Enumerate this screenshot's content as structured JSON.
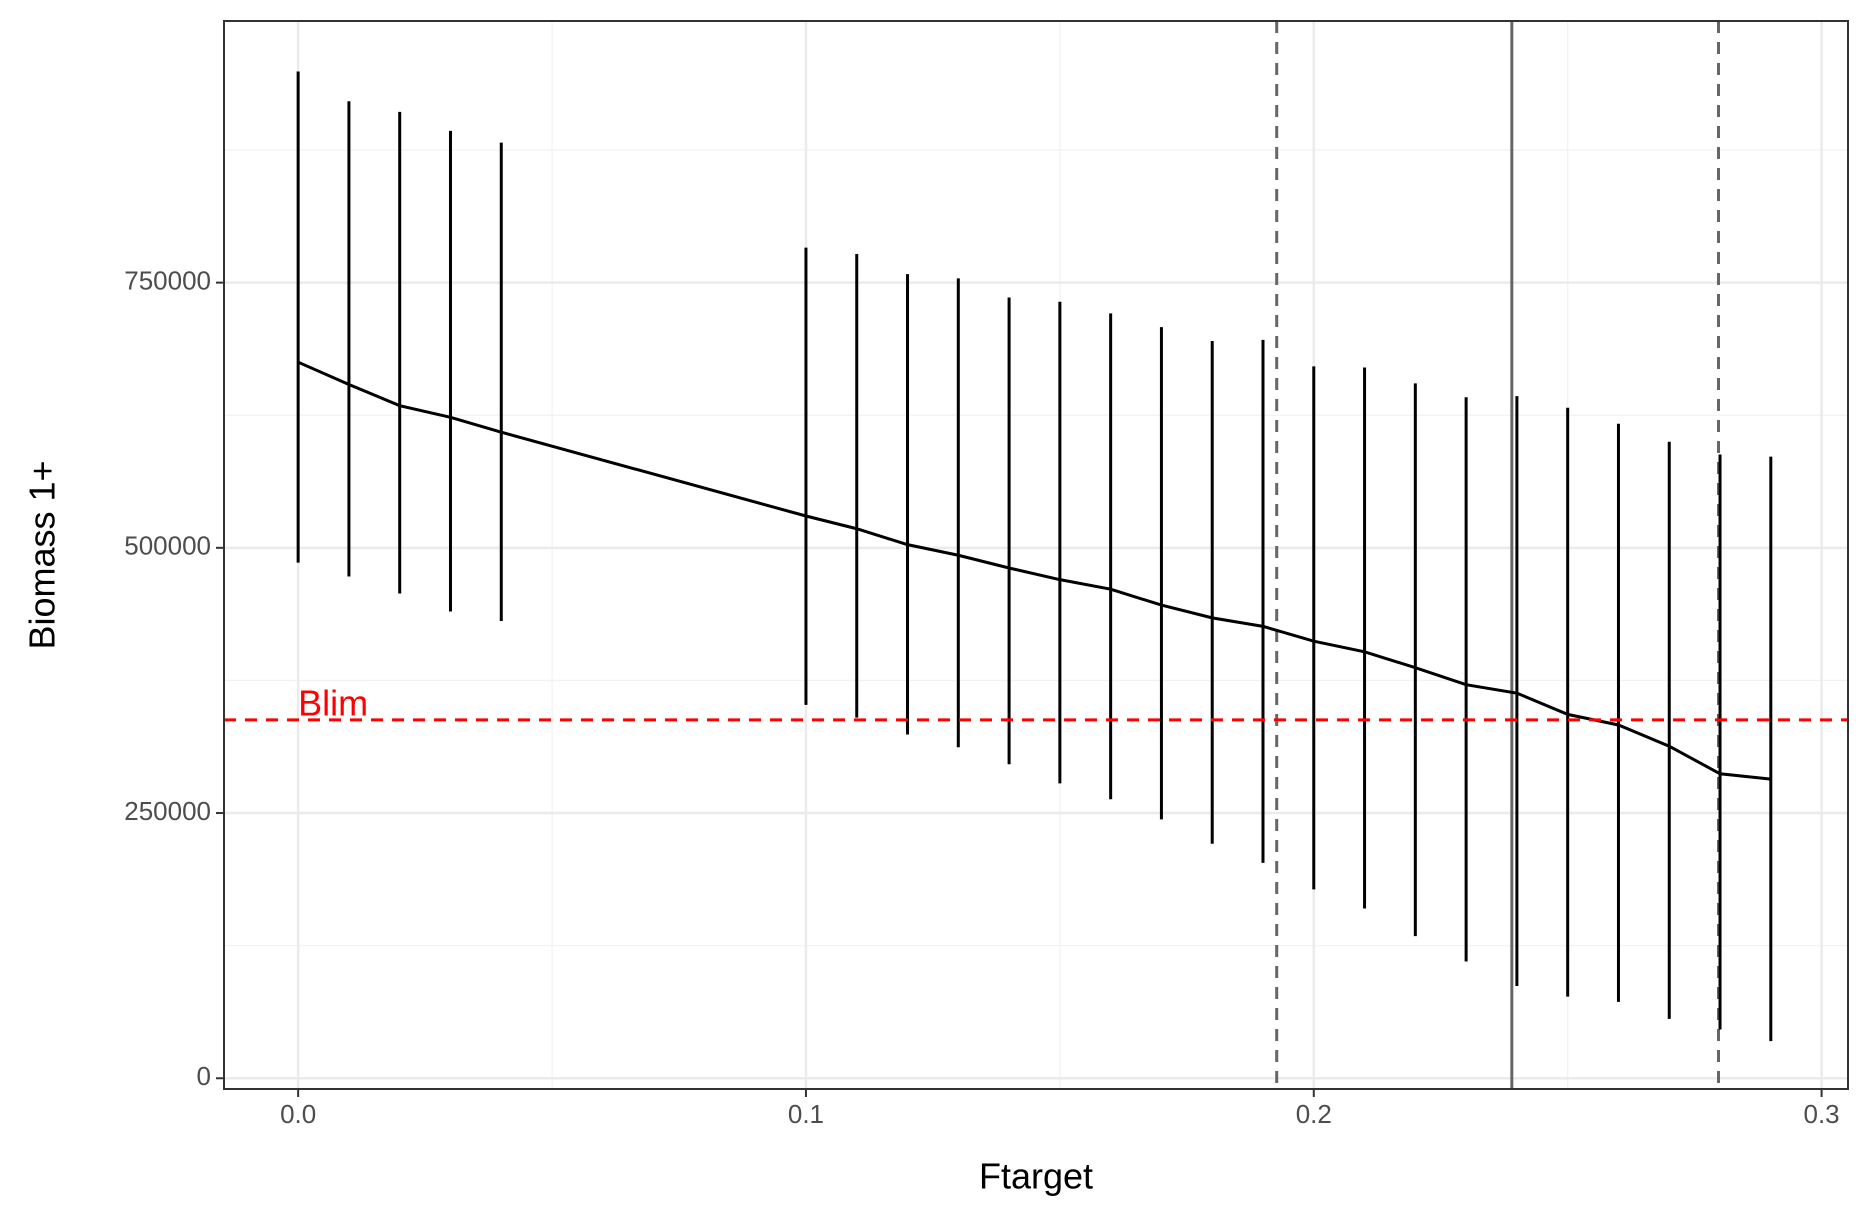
{
  "chart_data": {
    "type": "errorbar-line",
    "x_label": "Ftarget",
    "y_label": "Biomass 1+",
    "x": [
      0,
      0.01,
      0.02,
      0.03,
      0.04,
      0.1,
      0.11,
      0.12,
      0.13,
      0.14,
      0.15,
      0.16,
      0.17,
      0.18,
      0.19,
      0.2,
      0.21,
      0.22,
      0.23,
      0.24,
      0.25,
      0.26,
      0.27,
      0.28,
      0.29
    ],
    "values": [
      675000,
      654000,
      634000,
      623000,
      609000,
      530000,
      518000,
      503000,
      493000,
      481000,
      470000,
      461000,
      446000,
      434000,
      426000,
      412000,
      402000,
      387000,
      371000,
      363000,
      343000,
      333000,
      313000,
      287000,
      282000
    ],
    "upper": [
      949000,
      921000,
      911000,
      893000,
      882000,
      783000,
      777000,
      758000,
      754000,
      736000,
      732000,
      721000,
      708000,
      695000,
      696000,
      671000,
      670000,
      655000,
      642000,
      643000,
      632000,
      617000,
      600000,
      588000,
      586000
    ],
    "lower": [
      486000,
      473000,
      457000,
      440000,
      431000,
      352000,
      340000,
      324000,
      312000,
      296000,
      278000,
      263000,
      244000,
      221000,
      203000,
      178000,
      160000,
      134000,
      110000,
      87000,
      77000,
      72000,
      56000,
      46000,
      35000
    ],
    "color": "#000000",
    "xlim": [
      -0.0146,
      0.3052
    ],
    "ylim": [
      -10135,
      996622
    ],
    "xticks": [
      {
        "value": 0,
        "label": "0.0"
      },
      0.1,
      0.2,
      0.3
    ],
    "yticks": [
      0,
      250000,
      500000,
      750000
    ],
    "grid": true,
    "vlines": [
      {
        "value": 0.1927,
        "style": "dashed",
        "color": "#666666"
      },
      {
        "value": 0.239,
        "style": "solid",
        "color": "#666666"
      },
      {
        "value": 0.2797,
        "style": "dashed",
        "color": "#666666"
      }
    ],
    "hlines": [
      {
        "value": 337800,
        "style": "dashed",
        "color": "#ff0000",
        "label": "Blim",
        "label_x": 0
      }
    ]
  }
}
